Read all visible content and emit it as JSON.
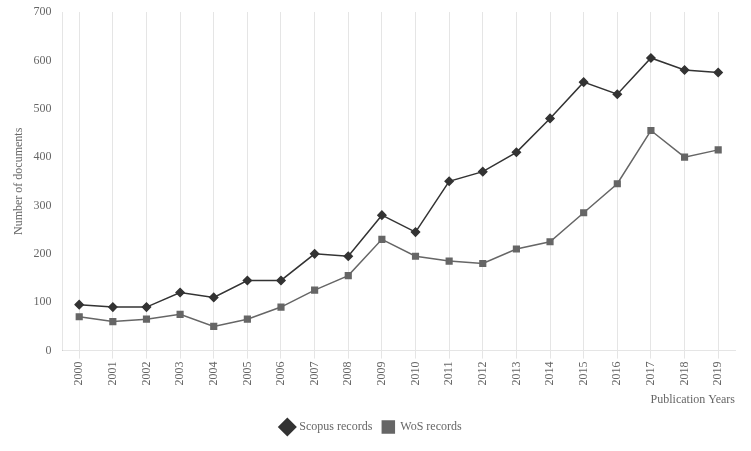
{
  "chart_data": {
    "type": "line",
    "x": [
      2000,
      2001,
      2002,
      2003,
      2004,
      2005,
      2006,
      2007,
      2008,
      2009,
      2010,
      2011,
      2012,
      2013,
      2014,
      2015,
      2016,
      2017,
      2018,
      2019
    ],
    "series": [
      {
        "name": "Scopus records",
        "color": "#333333",
        "marker": "diamond",
        "values": [
          95,
          90,
          90,
          120,
          110,
          145,
          145,
          200,
          195,
          280,
          245,
          350,
          370,
          410,
          480,
          555,
          530,
          605,
          580,
          575
        ]
      },
      {
        "name": "WoS records",
        "color": "#666666",
        "marker": "square",
        "values": [
          70,
          60,
          65,
          75,
          50,
          65,
          90,
          125,
          155,
          230,
          195,
          185,
          180,
          210,
          225,
          285,
          345,
          455,
          400,
          415
        ]
      }
    ],
    "xlabel": "Publication Years",
    "ylabel": "Number of documents",
    "xlim": [
      1999.5,
      2019.5
    ],
    "xticks": [
      2000,
      2001,
      2002,
      2003,
      2004,
      2005,
      2006,
      2007,
      2008,
      2009,
      2010,
      2011,
      2012,
      2013,
      2014,
      2015,
      2016,
      2017,
      2018,
      2019
    ],
    "ylim": [
      0,
      700
    ],
    "yticks": [
      0,
      100,
      200,
      300,
      400,
      500,
      600,
      700
    ],
    "grid": "x",
    "legend": "bottom"
  }
}
